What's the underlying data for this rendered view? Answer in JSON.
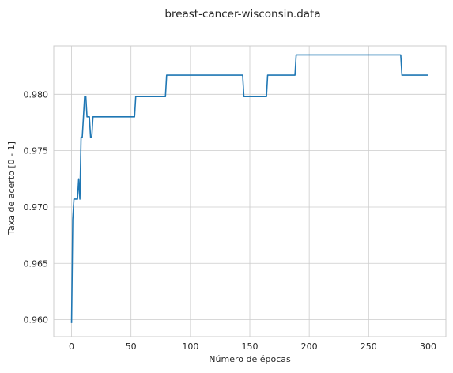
{
  "chart_data": {
    "type": "line",
    "title": "breast-cancer-wisconsin.data",
    "xlabel": "Número de épocas",
    "ylabel": "Taxa de acerto [0 - 1]",
    "xlim": [
      -15,
      315
    ],
    "ylim": [
      0.9585,
      0.9843
    ],
    "xticks": [
      0,
      50,
      100,
      150,
      200,
      250,
      300
    ],
    "xtick_labels": [
      "0",
      "50",
      "100",
      "150",
      "200",
      "250",
      "300"
    ],
    "yticks": [
      0.96,
      0.965,
      0.97,
      0.975,
      0.98
    ],
    "ytick_labels": [
      "0.960",
      "0.965",
      "0.970",
      "0.975",
      "0.980"
    ],
    "grid": true,
    "colors": {
      "line": "#1f77b4",
      "grid": "#cccccc",
      "frame": "#cccccc"
    },
    "series": [
      {
        "x": [
          0,
          1,
          2,
          3,
          4,
          5,
          6,
          7,
          8,
          9,
          10,
          11,
          12,
          13,
          14,
          15,
          16,
          17,
          18,
          53,
          54,
          79,
          80,
          144,
          145,
          164,
          165,
          188,
          189,
          277,
          278,
          300
        ],
        "y": [
          0.9597,
          0.9689,
          0.9707,
          0.9707,
          0.9707,
          0.9707,
          0.9725,
          0.9707,
          0.9762,
          0.9762,
          0.978,
          0.9798,
          0.9798,
          0.978,
          0.978,
          0.978,
          0.9762,
          0.9762,
          0.978,
          0.978,
          0.9798,
          0.9798,
          0.9817,
          0.9817,
          0.9798,
          0.9798,
          0.9817,
          0.9817,
          0.9835,
          0.9835,
          0.9817,
          0.9817
        ]
      }
    ]
  }
}
